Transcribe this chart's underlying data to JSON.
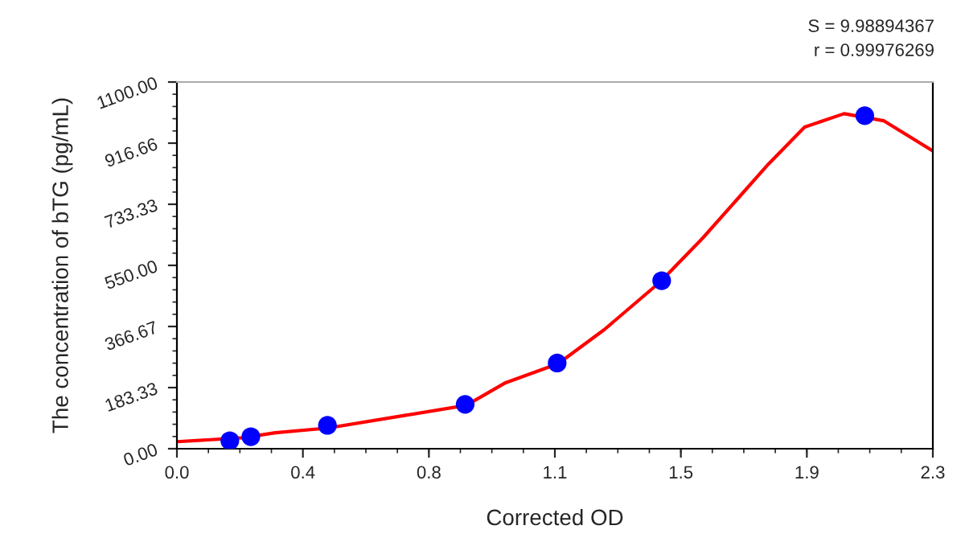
{
  "chart_data": {
    "type": "scatter",
    "xlabel": "Corrected OD",
    "ylabel": "The concentration of bTG (pg/mL)",
    "annotations": [
      "S = 9.98894367",
      "r = 0.99976269"
    ],
    "xlim": [
      0,
      2.3
    ],
    "xticks": [
      {
        "value": 0,
        "label": "0.0"
      },
      {
        "value": 0.3833,
        "label": "0.4"
      },
      {
        "value": 0.7667,
        "label": "0.8"
      },
      {
        "value": 1.15,
        "label": "1.1"
      },
      {
        "value": 1.5333,
        "label": "1.5"
      },
      {
        "value": 1.9167,
        "label": "1.9"
      },
      {
        "value": 2.3,
        "label": "2.3"
      }
    ],
    "ylim": [
      0,
      1100
    ],
    "yticks": [
      {
        "value": 0,
        "label": "0.00"
      },
      {
        "value": 183.33,
        "label": "183.33"
      },
      {
        "value": 366.67,
        "label": "366.67"
      },
      {
        "value": 550,
        "label": "550.00"
      },
      {
        "value": 733.33,
        "label": "733.33"
      },
      {
        "value": 916.66,
        "label": "916.66"
      },
      {
        "value": 1100,
        "label": "1100.00"
      }
    ],
    "grid": false,
    "legend": false,
    "series": [
      {
        "color": "#0000ff",
        "marker": "circle",
        "x": [
          0.161,
          0.225,
          0.458,
          0.877,
          1.157,
          1.475,
          2.093
        ],
        "values": [
          24,
          36,
          70,
          133,
          257,
          504,
          999
        ]
      },
      {
        "type": "line",
        "color": "#ff0000",
        "marker": "none",
        "line_style": "solid",
        "x": [
          0,
          0.2,
          0.3,
          0.46,
          0.7,
          0.88,
          1.0,
          1.16,
          1.3,
          1.47,
          1.6,
          1.7,
          1.8,
          1.91,
          2.03,
          2.15,
          2.3
        ],
        "values": [
          21,
          33,
          48,
          62,
          101,
          130,
          198,
          255,
          357,
          500,
          632,
          743,
          854,
          965,
          1005,
          984,
          893
        ]
      }
    ]
  }
}
